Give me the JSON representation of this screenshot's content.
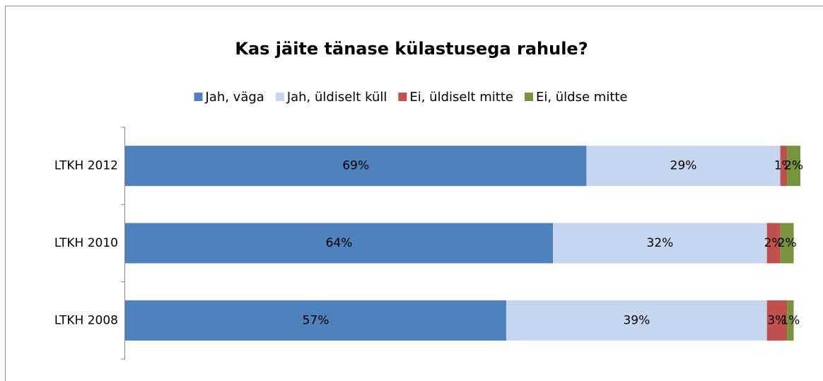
{
  "chart_data": {
    "type": "stacked_barh",
    "title": "Kas jäite tänase külastusega rahule?",
    "categories": [
      "LTKH 2012",
      "LTKH 2010",
      "LTKH 2008"
    ],
    "series": [
      {
        "name": "Jah, väga",
        "color": "#4f81bd",
        "values": [
          69,
          64,
          57
        ],
        "value_labels": [
          "69%",
          "64%",
          "57%"
        ]
      },
      {
        "name": "Jah, üldiselt küll",
        "color": "#c6d6f0",
        "values": [
          29,
          32,
          39
        ],
        "value_labels": [
          "29%",
          "32%",
          "39%"
        ]
      },
      {
        "name": "Ei, üldiselt mitte",
        "color": "#c0504d",
        "values": [
          1,
          2,
          3
        ],
        "value_labels": [
          "1%",
          "2%",
          "3%"
        ]
      },
      {
        "name": "Ei, üldse mitte",
        "color": "#77933c",
        "values": [
          2,
          2,
          1
        ],
        "value_labels": [
          "2%",
          "2%",
          "1%"
        ]
      }
    ],
    "legend": "top"
  }
}
